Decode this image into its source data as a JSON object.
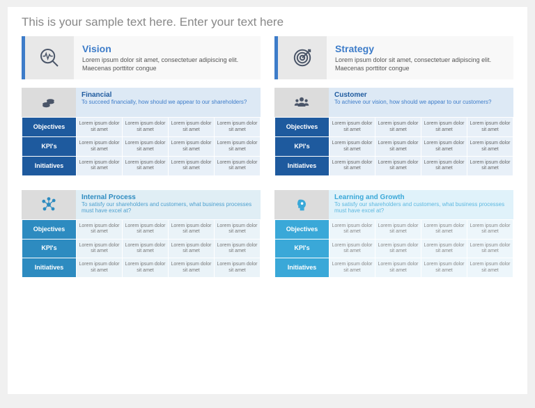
{
  "page_title": "This is your sample text here. Enter your text here",
  "colors": {
    "accent": "#3d7cc9",
    "dark_blue": "#1e5a9e",
    "mid_blue": "#2d8bc0",
    "light_blue": "#3aa8d8",
    "icon_stroke": "#4a5568"
  },
  "top": [
    {
      "icon": "magnifier-pulse",
      "title": "Vision",
      "body": "Lorem ipsum dolor sit amet, consectetuer adipiscing elit. Maecenas porttitor congue"
    },
    {
      "icon": "target",
      "title": "Strategy",
      "body": "Lorem ipsum dolor sit amet, consectetuer adipiscing elit. Maecenas porttitor congue"
    }
  ],
  "cell_text": "Lorem ipsum dolor sit amet",
  "row_labels": [
    "Objectives",
    "KPI's",
    "Initiatives"
  ],
  "quads": [
    {
      "class": "fin",
      "icon": "coins",
      "icon_color": "#4a5568",
      "title": "Financial",
      "sub": "To succeed financially, how should we appear to our shareholders?"
    },
    {
      "class": "cus",
      "icon": "users",
      "icon_color": "#4a5568",
      "title": "Customer",
      "sub": "To achieve our vision, how should we appear to our customers?"
    },
    {
      "class": "int",
      "icon": "network",
      "icon_color": "#2d8bc0",
      "title": "Internal Process",
      "sub": "To satisfy our shareholders and customers, what business processes must have excel at?"
    },
    {
      "class": "lrn",
      "icon": "head-gear",
      "icon_color": "#3aa8d8",
      "title": "Learning and Growth",
      "sub": "To satisfy our shareholders and customers, what business processes must have excel at?"
    }
  ]
}
